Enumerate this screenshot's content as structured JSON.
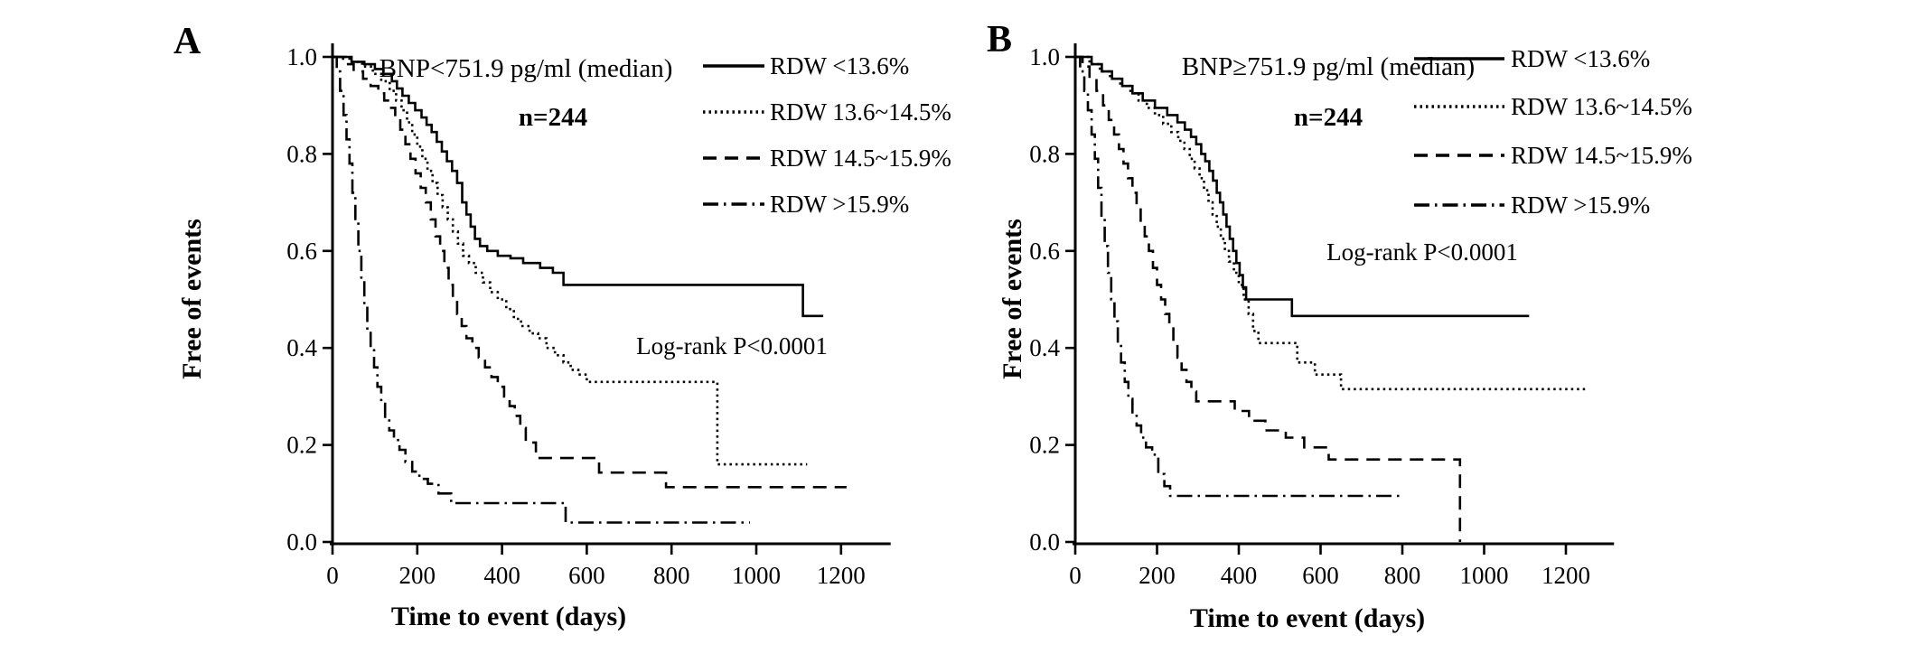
{
  "figure": {
    "background": "#ffffff",
    "ink": "#000000"
  },
  "chart_data": [
    {
      "type": "line",
      "panel": "A",
      "title": "BNP<751.9 pg/ml (median)",
      "subtitle": "n=244",
      "annotation": "Log-rank P<0.0001",
      "xlabel": "Time to event (days)",
      "ylabel": "Free of events",
      "xlim": [
        0,
        1300
      ],
      "ylim": [
        0,
        1.0
      ],
      "xticks": [
        0,
        200,
        400,
        600,
        800,
        1000,
        1200
      ],
      "yticks": [
        0.0,
        0.2,
        0.4,
        0.6,
        0.8,
        1.0
      ],
      "grid": false,
      "legend_position": "upper right outside",
      "series": [
        {
          "name": "RDW <13.6%",
          "linestyle": "solid",
          "steps": [
            [
              0,
              1.0
            ],
            [
              45,
              0.99
            ],
            [
              75,
              0.985
            ],
            [
              100,
              0.975
            ],
            [
              120,
              0.965
            ],
            [
              140,
              0.95
            ],
            [
              152,
              0.935
            ],
            [
              165,
              0.92
            ],
            [
              180,
              0.905
            ],
            [
              195,
              0.89
            ],
            [
              210,
              0.875
            ],
            [
              222,
              0.86
            ],
            [
              234,
              0.845
            ],
            [
              246,
              0.825
            ],
            [
              258,
              0.805
            ],
            [
              270,
              0.785
            ],
            [
              282,
              0.765
            ],
            [
              294,
              0.74
            ],
            [
              306,
              0.7
            ],
            [
              316,
              0.675
            ],
            [
              326,
              0.65
            ],
            [
              336,
              0.625
            ],
            [
              348,
              0.61
            ],
            [
              365,
              0.6
            ],
            [
              390,
              0.59
            ],
            [
              420,
              0.585
            ],
            [
              450,
              0.575
            ],
            [
              490,
              0.565
            ],
            [
              520,
              0.555
            ],
            [
              545,
              0.53
            ],
            [
              1110,
              0.466
            ],
            [
              1158,
              0.466
            ]
          ]
        },
        {
          "name": "RDW 13.6~14.5%",
          "linestyle": "dotted",
          "steps": [
            [
              0,
              1.0
            ],
            [
              40,
              0.99
            ],
            [
              70,
              0.98
            ],
            [
              95,
              0.965
            ],
            [
              115,
              0.95
            ],
            [
              135,
              0.93
            ],
            [
              150,
              0.91
            ],
            [
              163,
              0.89
            ],
            [
              176,
              0.865
            ],
            [
              188,
              0.84
            ],
            [
              200,
              0.815
            ],
            [
              212,
              0.79
            ],
            [
              224,
              0.765
            ],
            [
              236,
              0.74
            ],
            [
              248,
              0.715
            ],
            [
              260,
              0.69
            ],
            [
              272,
              0.665
            ],
            [
              284,
              0.64
            ],
            [
              296,
              0.615
            ],
            [
              308,
              0.59
            ],
            [
              322,
              0.575
            ],
            [
              338,
              0.555
            ],
            [
              355,
              0.535
            ],
            [
              372,
              0.515
            ],
            [
              390,
              0.5
            ],
            [
              410,
              0.48
            ],
            [
              428,
              0.46
            ],
            [
              445,
              0.445
            ],
            [
              465,
              0.43
            ],
            [
              485,
              0.42
            ],
            [
              505,
              0.4
            ],
            [
              525,
              0.385
            ],
            [
              545,
              0.37
            ],
            [
              562,
              0.355
            ],
            [
              580,
              0.345
            ],
            [
              600,
              0.33
            ],
            [
              908,
              0.16
            ],
            [
              1120,
              0.16
            ]
          ]
        },
        {
          "name": "RDW 14.5~15.9%",
          "linestyle": "dashed",
          "steps": [
            [
              0,
              1.0
            ],
            [
              25,
              0.985
            ],
            [
              50,
              0.97
            ],
            [
              72,
              0.955
            ],
            [
              90,
              0.94
            ],
            [
              108,
              0.925
            ],
            [
              122,
              0.91
            ],
            [
              135,
              0.895
            ],
            [
              148,
              0.875
            ],
            [
              160,
              0.85
            ],
            [
              172,
              0.82
            ],
            [
              184,
              0.79
            ],
            [
              196,
              0.76
            ],
            [
              208,
              0.73
            ],
            [
              220,
              0.7
            ],
            [
              232,
              0.665
            ],
            [
              243,
              0.63
            ],
            [
              254,
              0.6
            ],
            [
              264,
              0.565
            ],
            [
              274,
              0.53
            ],
            [
              284,
              0.5
            ],
            [
              294,
              0.47
            ],
            [
              305,
              0.445
            ],
            [
              316,
              0.42
            ],
            [
              330,
              0.4
            ],
            [
              345,
              0.38
            ],
            [
              360,
              0.36
            ],
            [
              375,
              0.34
            ],
            [
              390,
              0.32
            ],
            [
              405,
              0.3
            ],
            [
              418,
              0.28
            ],
            [
              430,
              0.26
            ],
            [
              443,
              0.235
            ],
            [
              456,
              0.205
            ],
            [
              480,
              0.173
            ],
            [
              629,
              0.143
            ],
            [
              787,
              0.113
            ],
            [
              1213,
              0.113
            ]
          ]
        },
        {
          "name": "RDW >15.9%",
          "linestyle": "dashdot",
          "steps": [
            [
              0,
              1.0
            ],
            [
              10,
              0.97
            ],
            [
              18,
              0.93
            ],
            [
              26,
              0.88
            ],
            [
              33,
              0.83
            ],
            [
              40,
              0.78
            ],
            [
              47,
              0.72
            ],
            [
              54,
              0.66
            ],
            [
              61,
              0.6
            ],
            [
              68,
              0.54
            ],
            [
              75,
              0.49
            ],
            [
              82,
              0.44
            ],
            [
              90,
              0.4
            ],
            [
              98,
              0.36
            ],
            [
              106,
              0.32
            ],
            [
              115,
              0.285
            ],
            [
              124,
              0.255
            ],
            [
              134,
              0.23
            ],
            [
              145,
              0.21
            ],
            [
              158,
              0.19
            ],
            [
              172,
              0.165
            ],
            [
              188,
              0.145
            ],
            [
              205,
              0.13
            ],
            [
              225,
              0.12
            ],
            [
              250,
              0.1
            ],
            [
              280,
              0.08
            ],
            [
              550,
              0.04
            ],
            [
              985,
              0.04
            ]
          ]
        }
      ]
    },
    {
      "type": "line",
      "panel": "B",
      "title": "BNP≥751.9 pg/ml (median)",
      "subtitle": "n=244",
      "annotation": "Log-rank P<0.0001",
      "xlabel": "Time to event (days)",
      "ylabel": "Free of events",
      "xlim": [
        0,
        1300
      ],
      "ylim": [
        0,
        1.0
      ],
      "xticks": [
        0,
        200,
        400,
        600,
        800,
        1000,
        1200
      ],
      "yticks": [
        0.0,
        0.2,
        0.4,
        0.6,
        0.8,
        1.0
      ],
      "grid": false,
      "legend_position": "upper right outside",
      "series": [
        {
          "name": "RDW <13.6%",
          "linestyle": "solid",
          "steps": [
            [
              0,
              1.0
            ],
            [
              40,
              0.985
            ],
            [
              65,
              0.97
            ],
            [
              90,
              0.955
            ],
            [
              115,
              0.94
            ],
            [
              140,
              0.925
            ],
            [
              165,
              0.91
            ],
            [
              195,
              0.895
            ],
            [
              225,
              0.88
            ],
            [
              250,
              0.865
            ],
            [
              268,
              0.85
            ],
            [
              283,
              0.835
            ],
            [
              296,
              0.82
            ],
            [
              308,
              0.8
            ],
            [
              318,
              0.785
            ],
            [
              328,
              0.765
            ],
            [
              337,
              0.745
            ],
            [
              346,
              0.72
            ],
            [
              354,
              0.7
            ],
            [
              362,
              0.675
            ],
            [
              370,
              0.65
            ],
            [
              378,
              0.625
            ],
            [
              386,
              0.6
            ],
            [
              394,
              0.575
            ],
            [
              402,
              0.55
            ],
            [
              410,
              0.525
            ],
            [
              418,
              0.5
            ],
            [
              530,
              0.466
            ],
            [
              1110,
              0.466
            ]
          ]
        },
        {
          "name": "RDW 13.6~14.5%",
          "linestyle": "dotted",
          "steps": [
            [
              0,
              1.0
            ],
            [
              35,
              0.985
            ],
            [
              60,
              0.97
            ],
            [
              85,
              0.955
            ],
            [
              110,
              0.94
            ],
            [
              135,
              0.925
            ],
            [
              155,
              0.91
            ],
            [
              175,
              0.895
            ],
            [
              195,
              0.88
            ],
            [
              215,
              0.862
            ],
            [
              235,
              0.845
            ],
            [
              252,
              0.827
            ],
            [
              267,
              0.81
            ],
            [
              280,
              0.79
            ],
            [
              292,
              0.77
            ],
            [
              304,
              0.75
            ],
            [
              315,
              0.725
            ],
            [
              326,
              0.7
            ],
            [
              336,
              0.675
            ],
            [
              346,
              0.65
            ],
            [
              356,
              0.625
            ],
            [
              366,
              0.6
            ],
            [
              376,
              0.578
            ],
            [
              388,
              0.555
            ],
            [
              400,
              0.53
            ],
            [
              412,
              0.5
            ],
            [
              424,
              0.47
            ],
            [
              435,
              0.435
            ],
            [
              448,
              0.41
            ],
            [
              543,
              0.37
            ],
            [
              586,
              0.345
            ],
            [
              650,
              0.315
            ],
            [
              1250,
              0.315
            ]
          ]
        },
        {
          "name": "RDW 14.5~15.9%",
          "linestyle": "dashed",
          "steps": [
            [
              0,
              1.0
            ],
            [
              18,
              0.98
            ],
            [
              35,
              0.955
            ],
            [
              52,
              0.93
            ],
            [
              68,
              0.9
            ],
            [
              82,
              0.87
            ],
            [
              95,
              0.84
            ],
            [
              107,
              0.81
            ],
            [
              118,
              0.78
            ],
            [
              129,
              0.75
            ],
            [
              140,
              0.72
            ],
            [
              150,
              0.69
            ],
            [
              160,
              0.66
            ],
            [
              170,
              0.63
            ],
            [
              180,
              0.6
            ],
            [
              190,
              0.565
            ],
            [
              200,
              0.53
            ],
            [
              210,
              0.5
            ],
            [
              220,
              0.47
            ],
            [
              230,
              0.44
            ],
            [
              240,
              0.41
            ],
            [
              250,
              0.38
            ],
            [
              260,
              0.355
            ],
            [
              272,
              0.33
            ],
            [
              284,
              0.31
            ],
            [
              296,
              0.29
            ],
            [
              390,
              0.27
            ],
            [
              425,
              0.25
            ],
            [
              465,
              0.23
            ],
            [
              515,
              0.215
            ],
            [
              560,
              0.195
            ],
            [
              620,
              0.17
            ],
            [
              941,
              0.17
            ],
            [
              941,
              0.0
            ]
          ]
        },
        {
          "name": "RDW >15.9%",
          "linestyle": "dashdot",
          "steps": [
            [
              0,
              1.0
            ],
            [
              12,
              0.97
            ],
            [
              22,
              0.93
            ],
            [
              31,
              0.89
            ],
            [
              40,
              0.84
            ],
            [
              48,
              0.79
            ],
            [
              56,
              0.73
            ],
            [
              64,
              0.67
            ],
            [
              72,
              0.61
            ],
            [
              80,
              0.555
            ],
            [
              88,
              0.5
            ],
            [
              96,
              0.455
            ],
            [
              104,
              0.41
            ],
            [
              112,
              0.37
            ],
            [
              121,
              0.33
            ],
            [
              130,
              0.295
            ],
            [
              140,
              0.265
            ],
            [
              150,
              0.24
            ],
            [
              161,
              0.215
            ],
            [
              173,
              0.195
            ],
            [
              188,
              0.18
            ],
            [
              203,
              0.14
            ],
            [
              218,
              0.115
            ],
            [
              232,
              0.095
            ],
            [
              800,
              0.095
            ]
          ]
        }
      ]
    }
  ]
}
